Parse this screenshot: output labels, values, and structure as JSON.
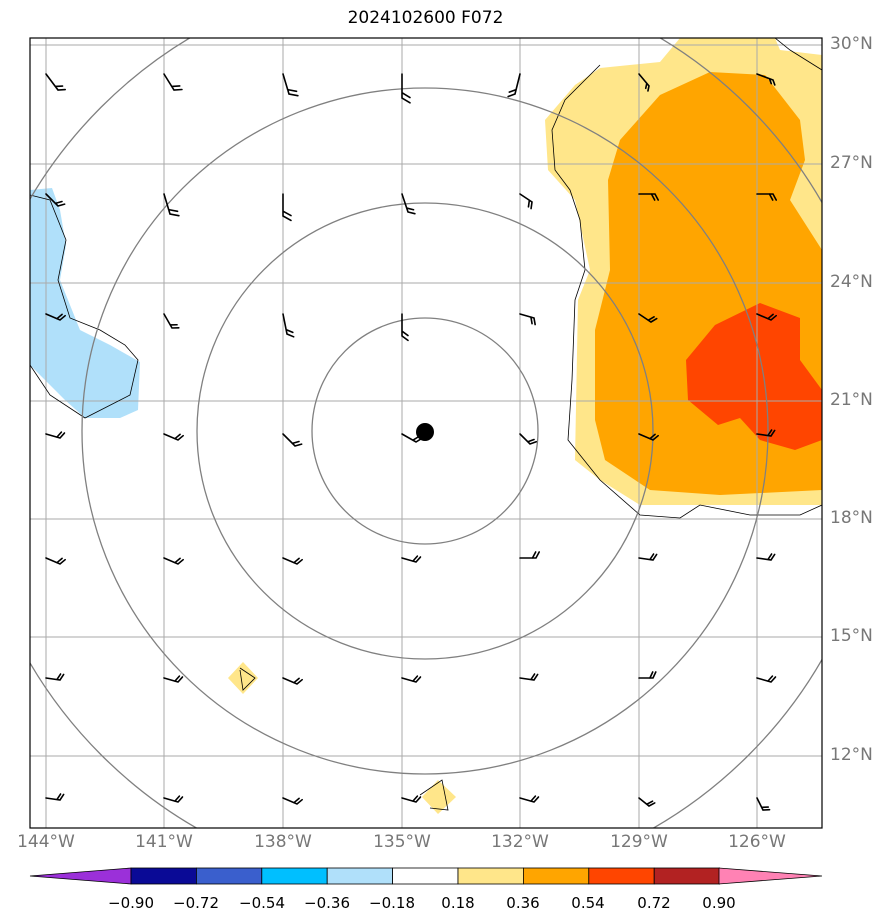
{
  "title": "2024102600 F072",
  "lon_labels": [
    "144°W",
    "141°W",
    "138°W",
    "135°W",
    "132°W",
    "129°W",
    "126°W"
  ],
  "lat_labels": [
    "30°N",
    "27°N",
    "24°N",
    "21°N",
    "18°N",
    "15°N",
    "12°N"
  ],
  "colorbar": {
    "labels": [
      "−0.90",
      "−0.72",
      "−0.54",
      "−0.36",
      "−0.18",
      "0.18",
      "0.36",
      "0.54",
      "0.72",
      "0.90"
    ],
    "colors": [
      "#9b30d9",
      "#0a0a96",
      "#3a5fcd",
      "#00bfff",
      "#b0e0fa",
      "#ffffff",
      "#ffe68a",
      "#ffa500",
      "#ff4500",
      "#b22222",
      "#ff82b4"
    ]
  },
  "map": {
    "storm_center": {
      "lon": -134.4,
      "lat": 20.8
    },
    "range_rings_deg": [
      3,
      6,
      9,
      12
    ],
    "colors": {
      "ring": "#808080",
      "grid": "#aaaaaa",
      "coast": "#000000"
    }
  }
}
